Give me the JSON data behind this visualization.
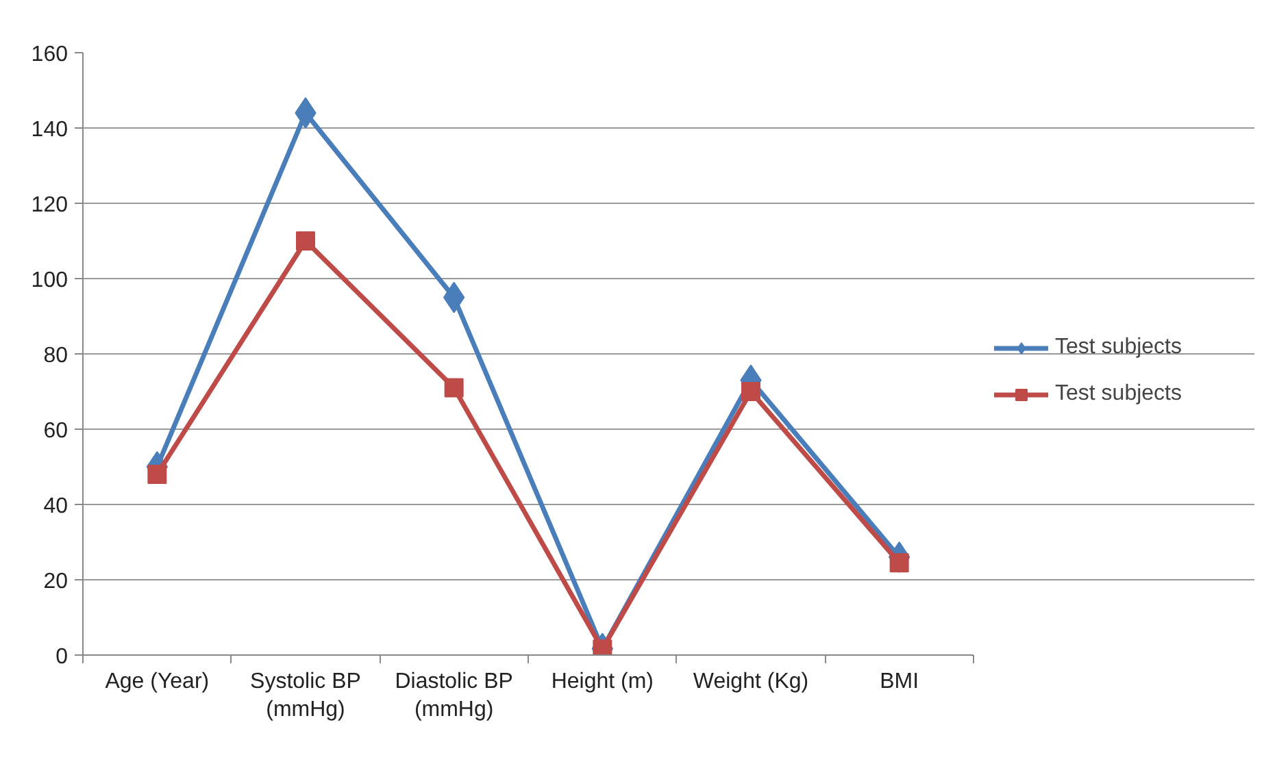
{
  "chart_data": {
    "type": "line",
    "categories": [
      "Age (Year)",
      "Systolic BP (mmHg)",
      "Diastolic BP (mmHg)",
      "Height (m)",
      "Weight (Kg)",
      "BMI"
    ],
    "series": [
      {
        "name": "Test subjects",
        "color": "#4a7ebb",
        "marker": "diamond",
        "values": [
          50,
          144,
          95,
          1.7,
          73,
          26
        ]
      },
      {
        "name": "Test subjects",
        "color": "#be4b48",
        "marker": "square",
        "values": [
          48,
          110,
          71,
          1.6,
          70,
          24.5
        ]
      }
    ],
    "ylim": [
      0,
      160
    ],
    "yticks": [
      0,
      20,
      40,
      60,
      80,
      100,
      120,
      140,
      160
    ],
    "grid": "y",
    "legend": "right",
    "line_style": "solid"
  }
}
